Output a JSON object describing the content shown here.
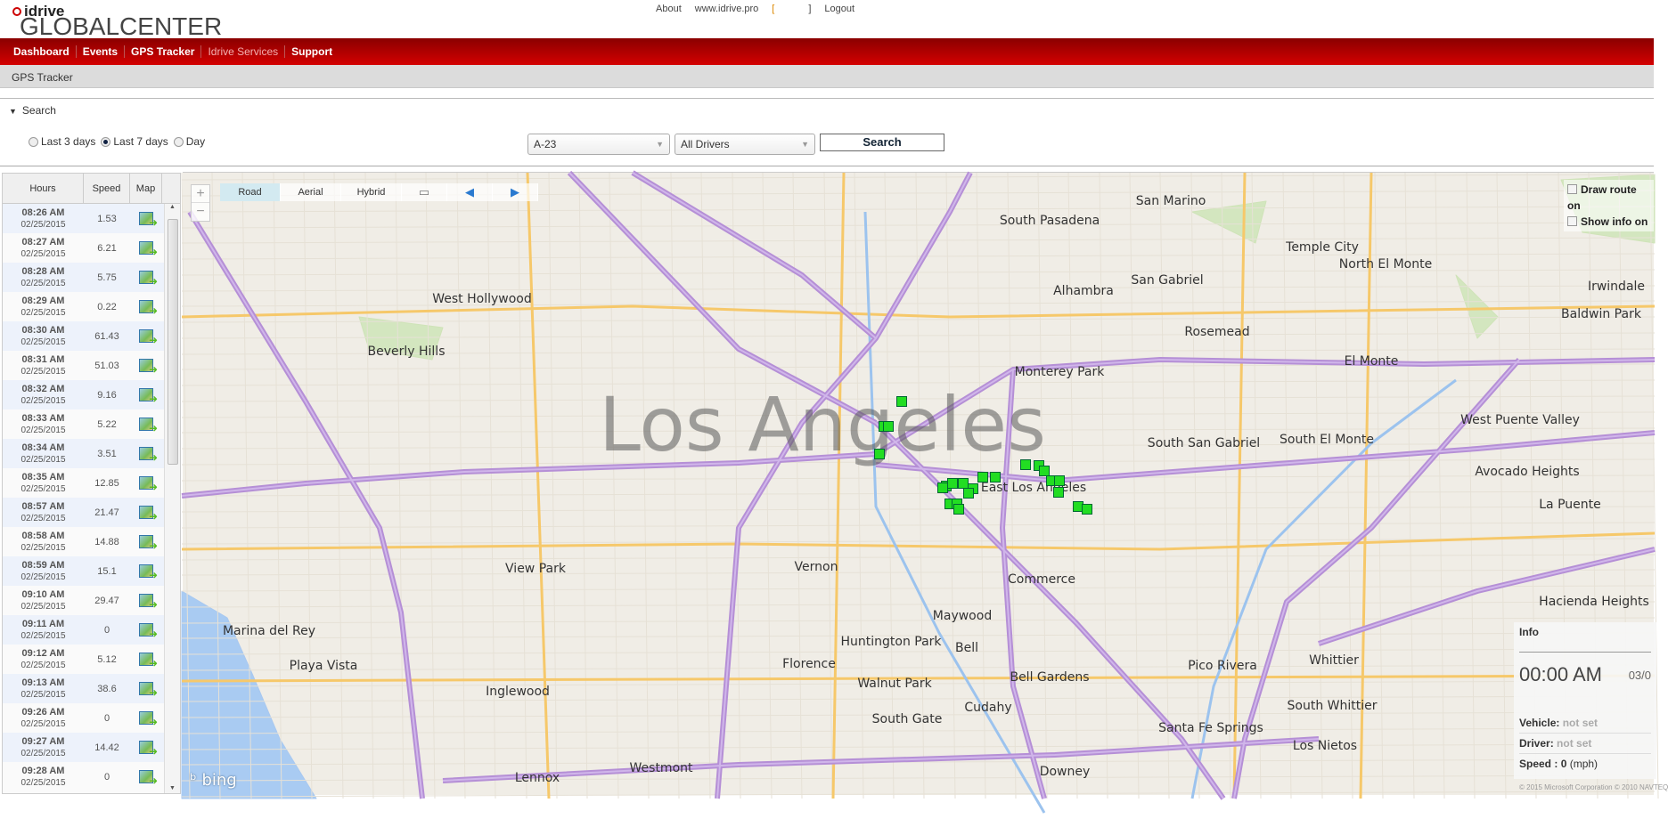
{
  "header": {
    "logo_top": "idrive",
    "logo_bottom": "GLOBALCENTER",
    "links": {
      "about": "About",
      "site": "www.idrive.pro",
      "bracket_open": "[",
      "bracket_close": "]",
      "logout": "Logout"
    }
  },
  "nav": [
    "Dashboard",
    "Events",
    "GPS Tracker",
    "Idrive Services",
    "Support"
  ],
  "breadcrumb": "GPS Tracker",
  "search": {
    "title": "Search",
    "ranges": [
      "Last 3 days",
      "Last 7 days",
      "Day"
    ],
    "selected_range": "Last 7 days",
    "vehicle": "A-23",
    "driver": "All Drivers",
    "button": "Search"
  },
  "table": {
    "headers": [
      "Hours",
      "Speed",
      "Map"
    ],
    "rows": [
      {
        "time": "08:26 AM",
        "date": "02/25/2015",
        "speed": "1.53"
      },
      {
        "time": "08:27 AM",
        "date": "02/25/2015",
        "speed": "6.21"
      },
      {
        "time": "08:28 AM",
        "date": "02/25/2015",
        "speed": "5.75"
      },
      {
        "time": "08:29 AM",
        "date": "02/25/2015",
        "speed": "0.22"
      },
      {
        "time": "08:30 AM",
        "date": "02/25/2015",
        "speed": "61.43"
      },
      {
        "time": "08:31 AM",
        "date": "02/25/2015",
        "speed": "51.03"
      },
      {
        "time": "08:32 AM",
        "date": "02/25/2015",
        "speed": "9.16"
      },
      {
        "time": "08:33 AM",
        "date": "02/25/2015",
        "speed": "5.22"
      },
      {
        "time": "08:34 AM",
        "date": "02/25/2015",
        "speed": "3.51"
      },
      {
        "time": "08:35 AM",
        "date": "02/25/2015",
        "speed": "12.85"
      },
      {
        "time": "08:57 AM",
        "date": "02/25/2015",
        "speed": "21.47"
      },
      {
        "time": "08:58 AM",
        "date": "02/25/2015",
        "speed": "14.88"
      },
      {
        "time": "08:59 AM",
        "date": "02/25/2015",
        "speed": "15.1"
      },
      {
        "time": "09:10 AM",
        "date": "02/25/2015",
        "speed": "29.47"
      },
      {
        "time": "09:11 AM",
        "date": "02/25/2015",
        "speed": "0"
      },
      {
        "time": "09:12 AM",
        "date": "02/25/2015",
        "speed": "5.12"
      },
      {
        "time": "09:13 AM",
        "date": "02/25/2015",
        "speed": "38.6"
      },
      {
        "time": "09:26 AM",
        "date": "02/25/2015",
        "speed": "0"
      },
      {
        "time": "09:27 AM",
        "date": "02/25/2015",
        "speed": "14.42"
      },
      {
        "time": "09:28 AM",
        "date": "02/25/2015",
        "speed": "0"
      }
    ]
  },
  "map": {
    "types": [
      "Road",
      "Aerial",
      "Hybrid"
    ],
    "selected_type": "Road",
    "city": "Los Angeles",
    "places": [
      "Beverly Hills",
      "West Hollywood",
      "South Pasadena",
      "Alhambra",
      "San Gabriel",
      "San Marino",
      "Temple City",
      "Rosemead",
      "Monterey Park",
      "El Monte",
      "South El Monte",
      "South San Gabriel",
      "Baldwin Park",
      "View Park",
      "Marina del Rey",
      "Playa Vista",
      "Inglewood",
      "Huntington Park",
      "Maywood",
      "Bell",
      "Commerce",
      "Florence",
      "Walnut Park",
      "Bell Gardens",
      "Cudahy",
      "South Gate",
      "Pico Rivera",
      "Whittier",
      "South Whittier",
      "Downey",
      "Westmont",
      "Lennox",
      "Santa Fe Springs",
      "Los Nietos",
      "Hacienda Heights",
      "La Puente",
      "Avocado Heights",
      "West Puente Valley",
      "Vernon",
      "Irwindale",
      "North El Monte",
      "East Los Angeles"
    ],
    "options": [
      "Draw route on",
      "Show info on"
    ],
    "brand": "bing",
    "copyright": "© 2015 Microsoft Corporation   © 2010 NAVTEQ",
    "route_color": "#22dd22"
  },
  "info": {
    "title": "Info",
    "time": "00:00 AM",
    "date": "03/0",
    "vehicle_label": "Vehicle:",
    "vehicle": "not set",
    "driver_label": "Driver:",
    "driver": "not set",
    "speed_label": "Speed :",
    "speed": "0",
    "speed_unit": "(mph)"
  }
}
